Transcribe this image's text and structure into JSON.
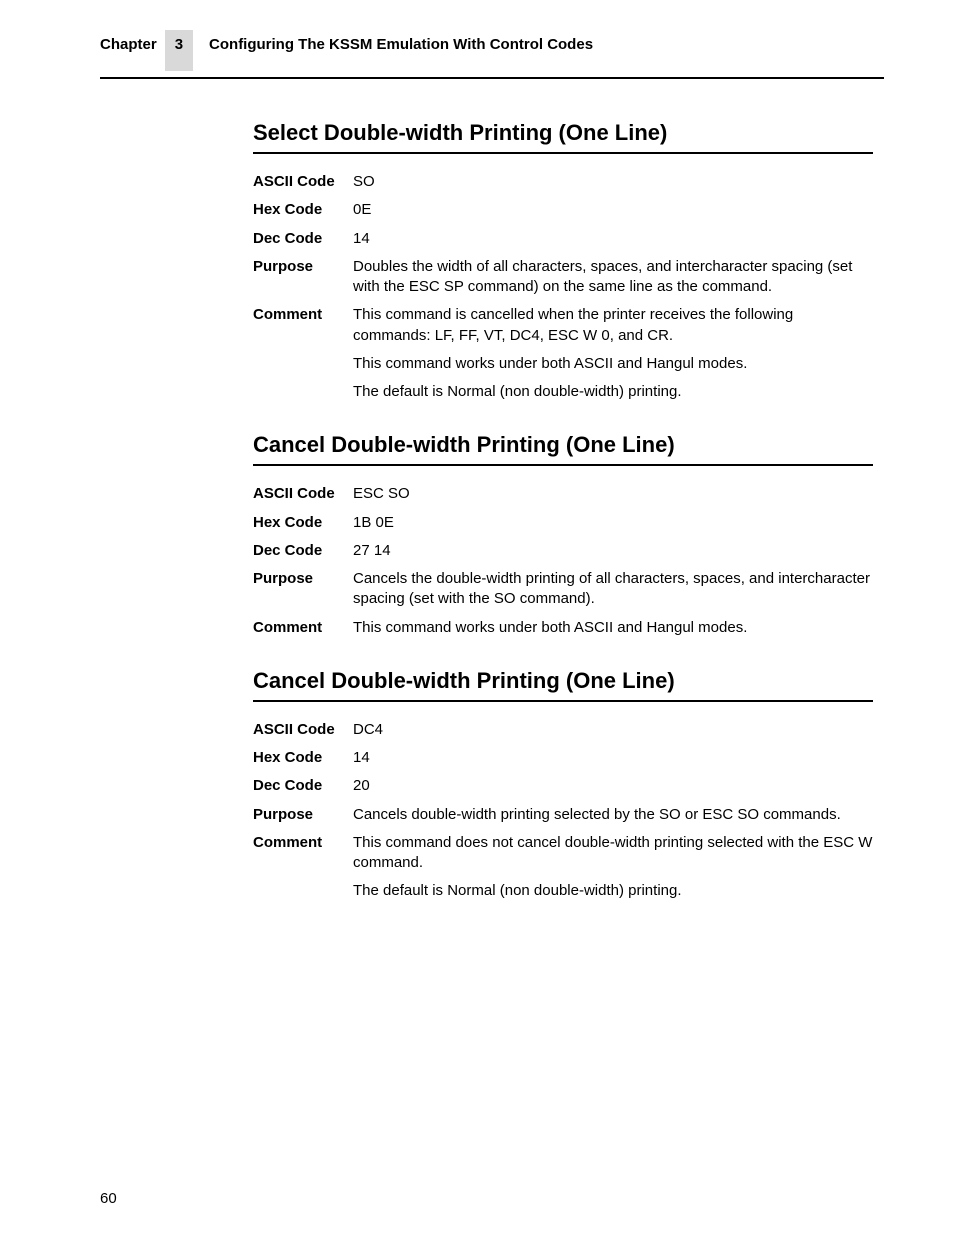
{
  "header": {
    "chapter_label": "Chapter",
    "chapter_number": "3",
    "chapter_title": "Configuring The KSSM Emulation With Control Codes"
  },
  "sections": [
    {
      "title": "Select Double-width Printing (One Line)",
      "rows": [
        {
          "label": "ASCII Code",
          "paras": [
            "SO"
          ]
        },
        {
          "label": "Hex Code",
          "paras": [
            "0E"
          ]
        },
        {
          "label": "Dec Code",
          "paras": [
            "14"
          ]
        },
        {
          "label": "Purpose",
          "paras": [
            "Doubles the width of all characters, spaces, and intercharacter spacing (set with the ESC SP command) on the same line as the command."
          ]
        },
        {
          "label": "Comment",
          "paras": [
            "This command is cancelled when the printer receives the following commands: LF, FF, VT, DC4, ESC W 0, and CR.",
            "This command works under both ASCII and Hangul modes.",
            "The default is Normal (non double-width) printing."
          ]
        }
      ]
    },
    {
      "title": "Cancel Double-width Printing (One Line)",
      "rows": [
        {
          "label": "ASCII Code",
          "paras": [
            "ESC SO"
          ]
        },
        {
          "label": "Hex Code",
          "paras": [
            "1B 0E"
          ]
        },
        {
          "label": "Dec Code",
          "paras": [
            "27 14"
          ]
        },
        {
          "label": "Purpose",
          "paras": [
            "Cancels the double-width printing of all characters, spaces, and intercharacter spacing (set with the SO command)."
          ]
        },
        {
          "label": "Comment",
          "paras": [
            "This command works under both ASCII and Hangul modes."
          ]
        }
      ]
    },
    {
      "title": "Cancel Double-width Printing (One Line)",
      "rows": [
        {
          "label": "ASCII Code",
          "paras": [
            "DC4"
          ]
        },
        {
          "label": "Hex Code",
          "paras": [
            "14"
          ]
        },
        {
          "label": "Dec Code",
          "paras": [
            "20"
          ]
        },
        {
          "label": "Purpose",
          "paras": [
            "Cancels double-width printing selected by the SO or ESC SO commands."
          ]
        },
        {
          "label": "Comment",
          "paras": [
            "This command does not cancel double-width printing selected with the ESC W command.",
            "The default is Normal (non double-width) printing."
          ]
        }
      ]
    }
  ],
  "page_number": "60"
}
